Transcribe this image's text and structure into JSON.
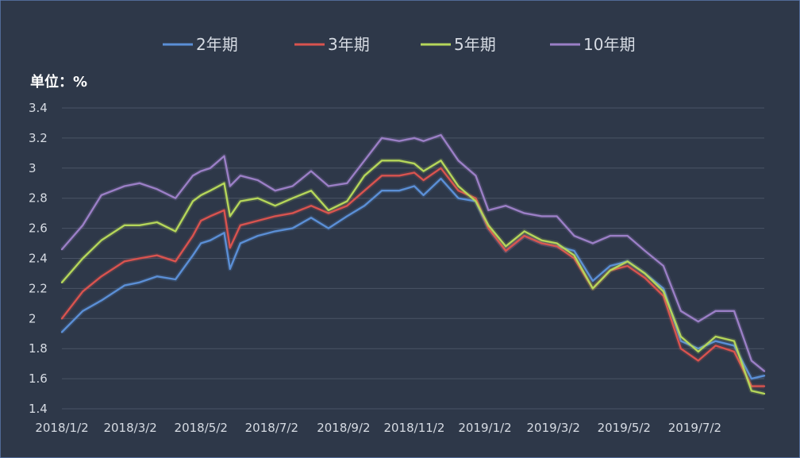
{
  "chart_data": {
    "type": "line",
    "ylabel": "单位：%",
    "ylim": [
      1.4,
      3.4
    ],
    "yticks": [
      "1.4",
      "1.6",
      "1.8",
      "2",
      "2.2",
      "2.4",
      "2.6",
      "2.8",
      "3",
      "3.2",
      "3.4"
    ],
    "xlim": [
      "2018/1/2",
      "2019/8/31"
    ],
    "xticks": [
      "2018/1/2",
      "2018/3/2",
      "2018/5/2",
      "2018/7/2",
      "2018/9/2",
      "2018/11/2",
      "2019/1/2",
      "2019/3/2",
      "2019/5/2",
      "2019/7/2"
    ],
    "grid": true,
    "legend_position": "top",
    "x": [
      "2018/1/2",
      "2018/1/20",
      "2018/2/5",
      "2018/2/25",
      "2018/3/10",
      "2018/3/25",
      "2018/4/10",
      "2018/4/25",
      "2018/5/2",
      "2018/5/10",
      "2018/5/22",
      "2018/5/27",
      "2018/6/5",
      "2018/6/20",
      "2018/7/5",
      "2018/7/20",
      "2018/8/5",
      "2018/8/20",
      "2018/9/5",
      "2018/9/20",
      "2018/10/5",
      "2018/10/20",
      "2018/11/2",
      "2018/11/10",
      "2018/11/25",
      "2018/12/10",
      "2018/12/25",
      "2019/1/5",
      "2019/1/20",
      "2019/2/5",
      "2019/2/20",
      "2019/3/5",
      "2019/3/20",
      "2019/4/5",
      "2019/4/20",
      "2019/5/5",
      "2019/5/20",
      "2019/6/5",
      "2019/6/20",
      "2019/7/5",
      "2019/7/20",
      "2019/8/5",
      "2019/8/20",
      "2019/8/31"
    ],
    "series": [
      {
        "name": "2年期",
        "color": "#5b8fd6",
        "values": [
          1.91,
          2.05,
          2.12,
          2.22,
          2.24,
          2.28,
          2.26,
          2.42,
          2.5,
          2.52,
          2.57,
          2.33,
          2.5,
          2.55,
          2.58,
          2.6,
          2.67,
          2.6,
          2.68,
          2.75,
          2.85,
          2.85,
          2.88,
          2.82,
          2.93,
          2.8,
          2.78,
          2.6,
          2.45,
          2.55,
          2.5,
          2.48,
          2.45,
          2.25,
          2.35,
          2.38,
          2.3,
          2.2,
          1.85,
          1.8,
          1.85,
          1.82,
          1.6,
          1.62
        ]
      },
      {
        "name": "3年期",
        "color": "#d9534f",
        "values": [
          2.0,
          2.18,
          2.28,
          2.38,
          2.4,
          2.42,
          2.38,
          2.55,
          2.65,
          2.68,
          2.72,
          2.47,
          2.62,
          2.65,
          2.68,
          2.7,
          2.75,
          2.7,
          2.75,
          2.85,
          2.95,
          2.95,
          2.97,
          2.92,
          3.0,
          2.85,
          2.8,
          2.6,
          2.45,
          2.55,
          2.5,
          2.48,
          2.4,
          2.2,
          2.32,
          2.35,
          2.27,
          2.15,
          1.8,
          1.72,
          1.82,
          1.78,
          1.55,
          1.55
        ]
      },
      {
        "name": "5年期",
        "color": "#b5d65a",
        "values": [
          2.24,
          2.4,
          2.52,
          2.62,
          2.62,
          2.64,
          2.58,
          2.78,
          2.82,
          2.85,
          2.9,
          2.68,
          2.78,
          2.8,
          2.75,
          2.8,
          2.85,
          2.72,
          2.78,
          2.95,
          3.05,
          3.05,
          3.03,
          2.98,
          3.05,
          2.88,
          2.78,
          2.62,
          2.48,
          2.58,
          2.52,
          2.5,
          2.42,
          2.2,
          2.32,
          2.38,
          2.3,
          2.18,
          1.88,
          1.78,
          1.88,
          1.85,
          1.52,
          1.5
        ]
      },
      {
        "name": "10年期",
        "color": "#9b7fc6",
        "values": [
          2.46,
          2.62,
          2.82,
          2.88,
          2.9,
          2.86,
          2.8,
          2.95,
          2.98,
          3.0,
          3.08,
          2.88,
          2.95,
          2.92,
          2.85,
          2.88,
          2.98,
          2.88,
          2.9,
          3.05,
          3.2,
          3.18,
          3.2,
          3.18,
          3.22,
          3.05,
          2.95,
          2.72,
          2.75,
          2.7,
          2.68,
          2.68,
          2.55,
          2.5,
          2.55,
          2.55,
          2.45,
          2.35,
          2.05,
          1.98,
          2.05,
          2.05,
          1.72,
          1.65
        ]
      }
    ]
  }
}
